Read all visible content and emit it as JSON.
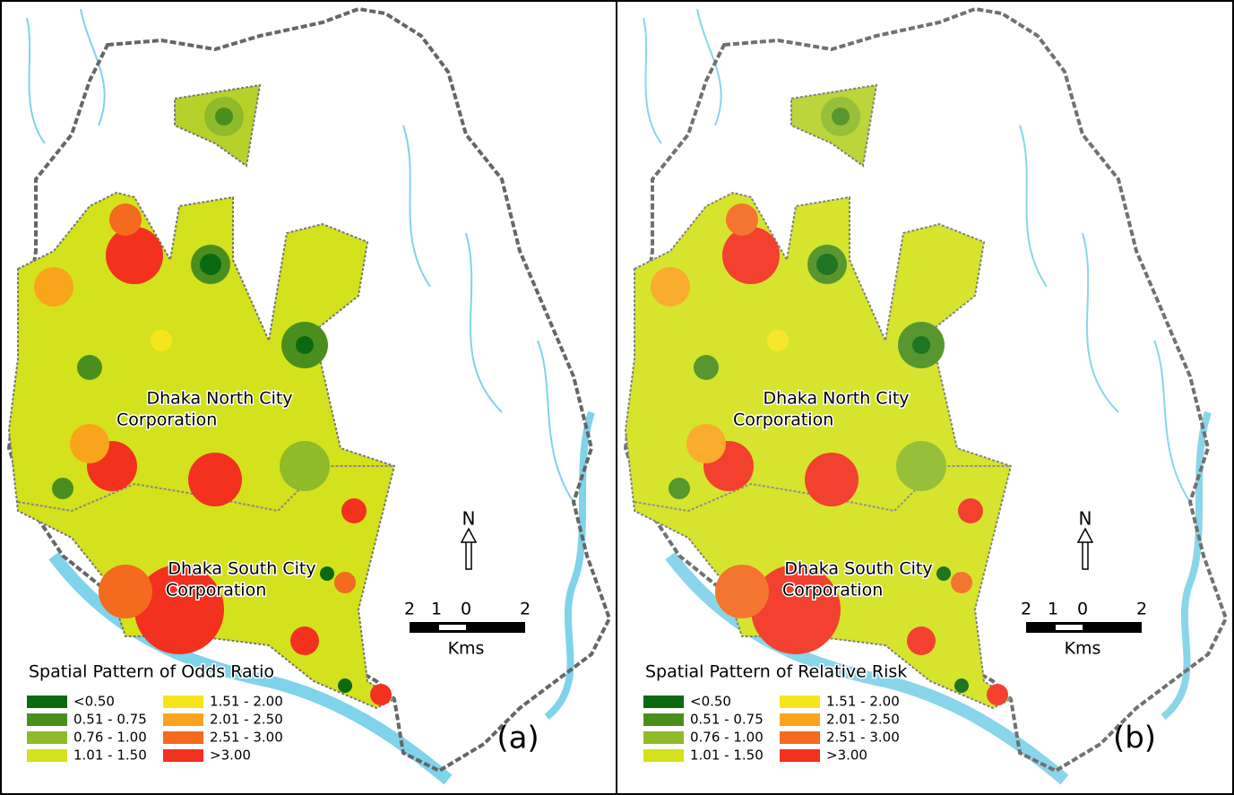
{
  "panels": [
    {
      "label": "(a)",
      "legend_title": "Spatial Pattern of Odds Ratio",
      "city_labels": [
        [
          "Dhaka North City",
          "Corporation"
        ],
        [
          "Dhaka South City",
          "Corporation"
        ]
      ],
      "north": "N",
      "scale_labels": [
        "2",
        "1",
        "0",
        "2"
      ],
      "scale_unit": "Kms",
      "legend": [
        {
          "label": "<0.50",
          "color": "#0b6a10"
        },
        {
          "label": "0.51 - 0.75",
          "color": "#4a8f1e"
        },
        {
          "label": "0.76 - 1.00",
          "color": "#8fbb2a"
        },
        {
          "label": "1.01 - 1.50",
          "color": "#d3e21c"
        },
        {
          "label": "1.51 - 2.00",
          "color": "#f7e51b"
        },
        {
          "label": "2.01 - 2.50",
          "color": "#f9a51c"
        },
        {
          "label": "2.51 - 3.00",
          "color": "#f46a1e"
        },
        {
          "label": ">3.00",
          "color": "#f2311f"
        }
      ]
    },
    {
      "label": "(b)",
      "legend_title": "Spatial Pattern of Relative Risk",
      "city_labels": [
        [
          "Dhaka North City",
          "Corporation"
        ],
        [
          "Dhaka South City",
          "Corporation"
        ]
      ],
      "north": "N",
      "scale_labels": [
        "2",
        "1",
        "0",
        "2"
      ],
      "scale_unit": "Kms",
      "legend": [
        {
          "label": "<0.50",
          "color": "#0b6a10"
        },
        {
          "label": "0.51 - 0.75",
          "color": "#4a8f1e"
        },
        {
          "label": "0.76 - 1.00",
          "color": "#8fbb2a"
        },
        {
          "label": "1.01 - 1.50",
          "color": "#d3e21c"
        },
        {
          "label": "1.51 - 2.00",
          "color": "#f7e51b"
        },
        {
          "label": "2.01 - 2.50",
          "color": "#f9a51c"
        },
        {
          "label": "2.51 - 3.00",
          "color": "#f46a1e"
        },
        {
          "label": ">3.00",
          "color": "#f2311f"
        }
      ]
    }
  ]
}
